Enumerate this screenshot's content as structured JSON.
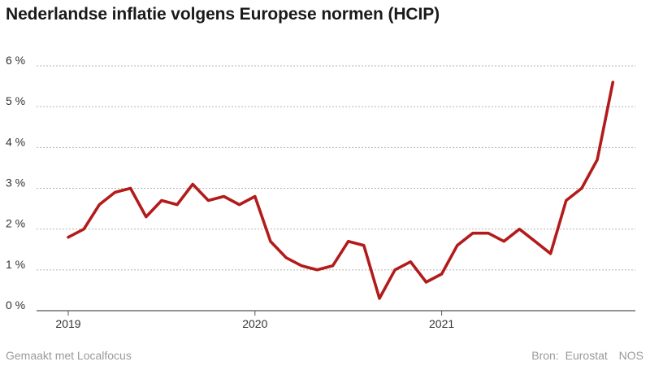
{
  "chart_data": {
    "type": "line",
    "title": "Nederlandse inflatie volgens Europese normen (HCIP)",
    "xlabel": "",
    "ylabel": "",
    "ylim": [
      0,
      6
    ],
    "yticks": [
      {
        "value": 0,
        "label": "0 %"
      },
      {
        "value": 1,
        "label": "1 %"
      },
      {
        "value": 2,
        "label": "2 %"
      },
      {
        "value": 3,
        "label": "3 %"
      },
      {
        "value": 4,
        "label": "4 %"
      },
      {
        "value": 5,
        "label": "5 %"
      },
      {
        "value": 6,
        "label": "6 %"
      }
    ],
    "xticks": [
      {
        "index": 0,
        "label": "2019"
      },
      {
        "index": 12,
        "label": "2020"
      },
      {
        "index": 24,
        "label": "2021"
      }
    ],
    "grid": true,
    "series": [
      {
        "name": "HCIP",
        "color": "#b31b1b",
        "values": [
          1.8,
          2.0,
          2.6,
          2.9,
          3.0,
          2.3,
          2.7,
          2.6,
          3.1,
          2.7,
          2.8,
          2.6,
          2.8,
          1.7,
          1.3,
          1.1,
          1.0,
          1.1,
          1.7,
          1.6,
          0.3,
          1.0,
          1.2,
          0.7,
          0.9,
          1.6,
          1.9,
          1.9,
          1.7,
          2.0,
          1.7,
          1.4,
          2.7,
          3.0,
          3.7,
          5.6
        ]
      }
    ]
  },
  "footer": {
    "made_with": "Gemaakt met Localfocus",
    "source_label": "Bron:",
    "source": "Eurostat",
    "publisher": "NOS"
  },
  "colors": {
    "line": "#b31b1b",
    "grid": "#b5b5b5",
    "axis_text": "#333333",
    "footer_text": "#9a9a9a"
  }
}
